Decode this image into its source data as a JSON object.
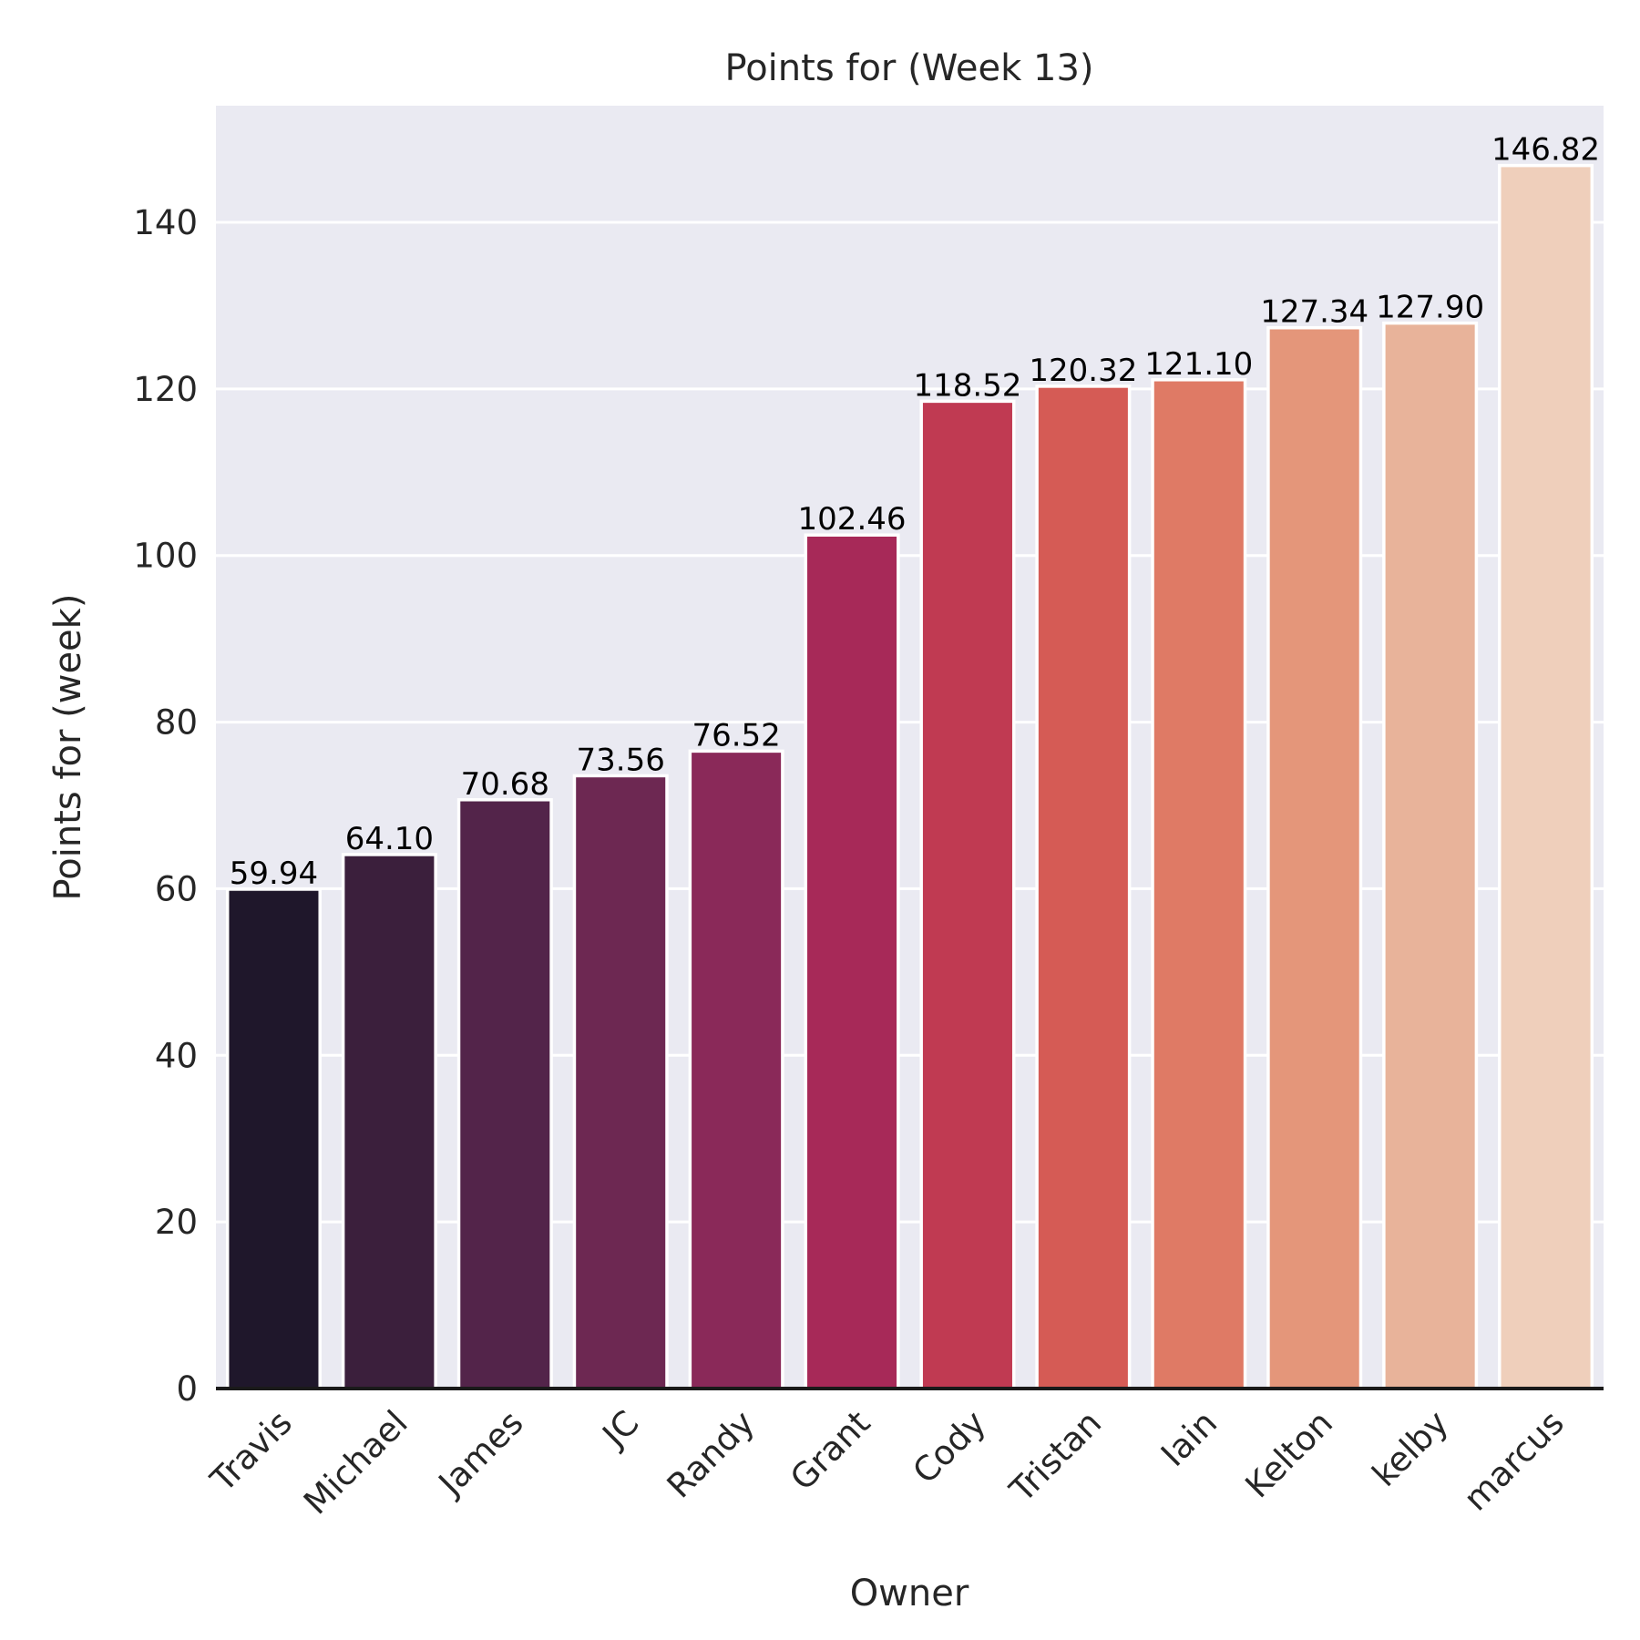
{
  "chart_data": {
    "type": "bar",
    "title": "Points for  (Week 13)",
    "xlabel": "Owner",
    "ylabel": "Points for (week)",
    "categories": [
      "Travis",
      "Michael",
      "James",
      "JC",
      "Randy",
      "Grant",
      "Cody",
      "Tristan",
      "Iain",
      "Kelton",
      "kelby",
      "marcus"
    ],
    "values": [
      59.94,
      64.1,
      70.68,
      73.56,
      76.52,
      102.46,
      118.52,
      120.32,
      121.1,
      127.34,
      127.9,
      146.82
    ],
    "value_labels": [
      "59.94",
      "64.10",
      "70.68",
      "73.56",
      "76.52",
      "102.46",
      "118.52",
      "120.32",
      "121.10",
      "127.34",
      "127.90",
      "146.82"
    ],
    "colors": [
      "#1f172b",
      "#3b1f3c",
      "#53244a",
      "#6d2852",
      "#8a2959",
      "#a72958",
      "#c03a52",
      "#d55b55",
      "#df7a65",
      "#e4967a",
      "#e8b39a",
      "#efcfbb"
    ],
    "ylim": [
      0,
      154
    ],
    "yticks": [
      0,
      20,
      40,
      60,
      80,
      100,
      120,
      140
    ],
    "grid": true,
    "background": "#eaeaf2",
    "legend": "none"
  }
}
